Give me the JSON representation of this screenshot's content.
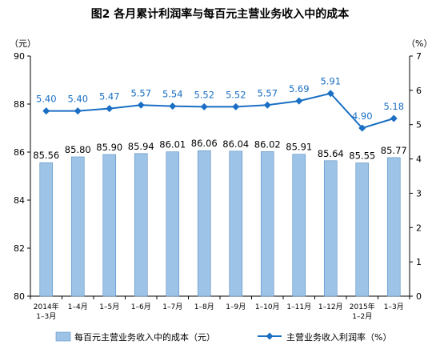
{
  "chart_data": {
    "type": "bar",
    "title": "图2  各月累计利润率与每百元主营业务收入中的成本",
    "y_left_unit": "（元）",
    "y_right_unit": "（%）",
    "ylim_left": [
      80,
      90
    ],
    "yticks_left": [
      "80",
      "82",
      "84",
      "86",
      "88",
      "90"
    ],
    "ylim_right": [
      0,
      7
    ],
    "yticks_right": [
      "0",
      "1",
      "2",
      "3",
      "4",
      "5",
      "6",
      "7"
    ],
    "categories": [
      [
        "2014年",
        "1–3月"
      ],
      [
        "1–4月"
      ],
      [
        "1–5月"
      ],
      [
        "1–6月"
      ],
      [
        "1–7月"
      ],
      [
        "1–8月"
      ],
      [
        "1–9月"
      ],
      [
        "1–10月"
      ],
      [
        "1–11月"
      ],
      [
        "1–12月"
      ],
      [
        "2015年",
        "1–2月"
      ],
      [
        "1–3月"
      ]
    ],
    "series": [
      {
        "name": "每百元主营业务收入中的成本（元）",
        "type": "bar",
        "axis": "left",
        "color": "#9dc3e6",
        "values": [
          85.56,
          85.8,
          85.9,
          85.94,
          86.01,
          86.06,
          86.04,
          86.02,
          85.91,
          85.64,
          85.55,
          85.77
        ],
        "labels": [
          "85.56",
          "85.80",
          "85.90",
          "85.94",
          "86.01",
          "86.06",
          "86.04",
          "86.02",
          "85.91",
          "85.64",
          "85.55",
          "85.77"
        ]
      },
      {
        "name": "主营业务收入利润率（%）",
        "type": "line",
        "axis": "right",
        "color": "#1a6fc4",
        "values": [
          5.4,
          5.4,
          5.47,
          5.57,
          5.54,
          5.52,
          5.52,
          5.57,
          5.69,
          5.91,
          4.9,
          5.18
        ],
        "labels": [
          "5.40",
          "5.40",
          "5.47",
          "5.57",
          "5.54",
          "5.52",
          "5.52",
          "5.57",
          "5.69",
          "5.91",
          "4.90",
          "5.18"
        ]
      }
    ],
    "legend_position": "bottom",
    "grid": false
  }
}
